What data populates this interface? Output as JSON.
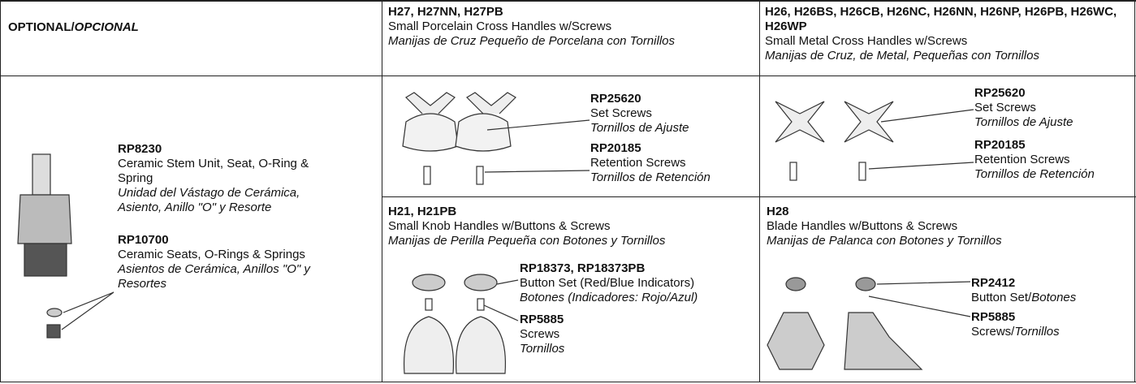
{
  "optional": {
    "title": "OPTIONAL/",
    "title_es": "OPCIONAL",
    "parts": [
      {
        "code": "RP8230",
        "desc": "Ceramic Stem Unit, Seat, O-Ring & Spring",
        "desc_es": "Unidad del Vástago de Cerámica, Asiento, Anillo \"O\" y Resorte"
      },
      {
        "code": "RP10700",
        "desc": "Ceramic Seats, O-Rings & Springs",
        "desc_es": "Asientos de Cerámica, Anillos \"O\" y Resortes"
      }
    ]
  },
  "sections": [
    {
      "models": "H27, H27NN, H27PB",
      "name": "Small Porcelain Cross Handles w/Screws",
      "name_es": "Manijas de Cruz Pequeño de Porcelana con Tornillos",
      "parts": [
        {
          "code": "RP25620",
          "desc": "Set Screws",
          "desc_es": "Tornillos de Ajuste"
        },
        {
          "code": "RP20185",
          "desc": "Retention Screws",
          "desc_es": "Tornillos de Retención"
        }
      ]
    },
    {
      "models": "H26, H26BS, H26CB, H26NC, H26NN, H26NP, H26PB, H26WC, H26WP",
      "name": "Small Metal Cross Handles w/Screws",
      "name_es": "Manijas de Cruz, de Metal, Pequeñas con Tornillos",
      "parts": [
        {
          "code": "RP25620",
          "desc": "Set Screws",
          "desc_es": "Tornillos de Ajuste"
        },
        {
          "code": "RP20185",
          "desc": "Retention Screws",
          "desc_es": "Tornillos de Retención"
        }
      ]
    },
    {
      "models": "H21, H21PB",
      "name": "Small Knob Handles w/Buttons & Screws",
      "name_es": "Manijas de Perilla Pequeña con Botones y Tornillos",
      "parts": [
        {
          "code": "RP18373, RP18373PB",
          "desc": "Button Set (Red/Blue Indicators)",
          "desc_es": "Botones (Indicadores: Rojo/Azul)"
        },
        {
          "code": "RP5885",
          "desc": "Screws",
          "desc_es": "Tornillos"
        }
      ]
    },
    {
      "models": "H28",
      "name": "Blade Handles w/Buttons & Screws",
      "name_es": "Manijas de Palanca con Botones y Tornillos",
      "parts": [
        {
          "code": "RP2412",
          "desc": "Button Set/",
          "desc_es": "Botones"
        },
        {
          "code": "RP5885",
          "desc": "Screws/",
          "desc_es": "Tornillos"
        }
      ]
    }
  ]
}
